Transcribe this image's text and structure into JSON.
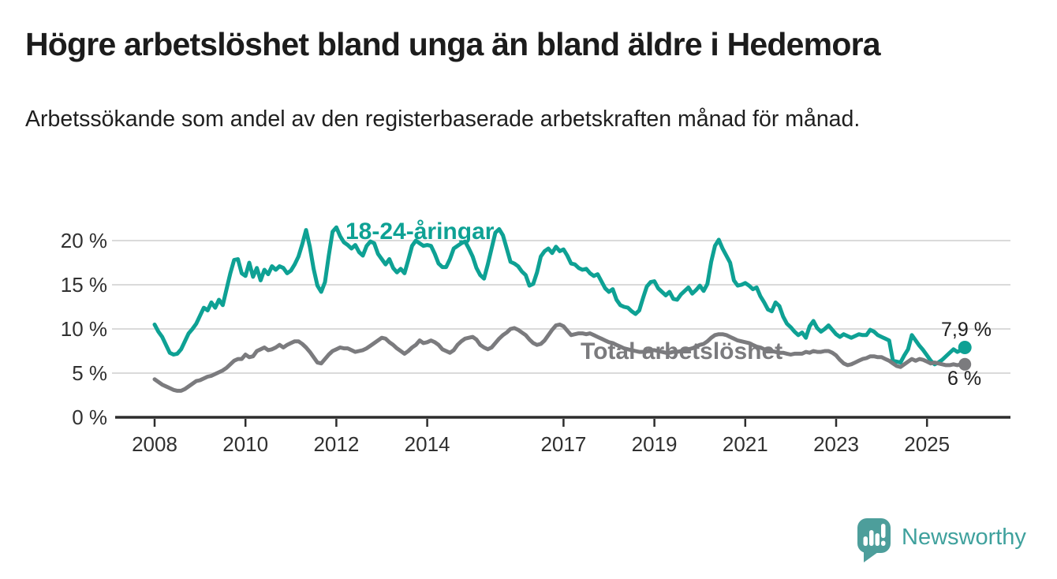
{
  "header": {
    "title": "Högre arbetslöshet bland unga än bland äldre i Hedemora",
    "subtitle": "Arbetssökande som andel av den registerbaserade arbetskraften månad för månad."
  },
  "chart_data": {
    "type": "line",
    "title": "Högre arbetslöshet bland unga än bland äldre i Hedemora",
    "subtitle": "Arbetssökande som andel av den registerbaserade arbetskraften månad för månad.",
    "unit": "%",
    "frequency": "monthly",
    "x_start": {
      "year": 2008,
      "month": 1
    },
    "x_end": {
      "year": 2025,
      "month": 11
    },
    "ylim": [
      0,
      22.5
    ],
    "grid": "horizontal",
    "y_axis": {
      "ticks": [
        0,
        5,
        10,
        15,
        20
      ],
      "tick_labels": [
        "0 %",
        "5 %",
        "10 %",
        "15 %",
        "20 %"
      ]
    },
    "x_axis": {
      "ticks": [
        2008,
        2010,
        2012,
        2014,
        2017,
        2019,
        2021,
        2023,
        2025
      ],
      "tick_labels": [
        "2008",
        "2010",
        "2012",
        "2014",
        "2017",
        "2019",
        "2021",
        "2023",
        "2025"
      ]
    },
    "colors": {
      "axis": "#2d2d2d",
      "gridline": "#dadada",
      "label_text": "#1e1e1e"
    },
    "series": [
      {
        "name": "18-24-åringar",
        "color": "#0ea194",
        "end_label": "7,9 %",
        "end_value": 7.9,
        "values": [
          10.5,
          9.7,
          9.1,
          8.2,
          7.3,
          7.1,
          7.2,
          7.7,
          8.6,
          9.5,
          10.0,
          10.6,
          11.5,
          12.4,
          12.1,
          13.0,
          12.4,
          13.3,
          12.7,
          14.5,
          16.3,
          17.8,
          17.9,
          16.3,
          16.0,
          17.5,
          15.9,
          16.9,
          15.5,
          16.7,
          16.2,
          17.1,
          16.7,
          17.1,
          16.9,
          16.3,
          16.6,
          17.3,
          18.2,
          19.6,
          21.2,
          19.3,
          16.8,
          14.9,
          14.2,
          15.3,
          18.3,
          21.0,
          21.5,
          20.5,
          19.8,
          19.5,
          19.1,
          19.5,
          18.7,
          18.3,
          19.4,
          19.9,
          19.7,
          18.5,
          17.9,
          17.3,
          17.9,
          16.9,
          16.4,
          16.8,
          16.3,
          17.8,
          19.4,
          20.0,
          19.7,
          19.4,
          19.5,
          19.4,
          18.5,
          17.4,
          17.0,
          17.0,
          17.9,
          19.1,
          19.4,
          19.7,
          19.9,
          19.1,
          18.2,
          16.9,
          16.1,
          15.7,
          17.3,
          19.1,
          20.9,
          21.3,
          20.6,
          19.1,
          17.6,
          17.4,
          17.1,
          16.5,
          16.1,
          14.9,
          15.1,
          16.4,
          18.2,
          18.8,
          19.1,
          18.6,
          19.3,
          18.8,
          19.0,
          18.3,
          17.4,
          17.3,
          16.9,
          16.7,
          16.8,
          16.3,
          16.0,
          16.2,
          15.4,
          14.6,
          14.2,
          14.5,
          13.3,
          12.7,
          12.5,
          12.4,
          12.0,
          11.7,
          12.1,
          13.5,
          14.8,
          15.3,
          15.4,
          14.6,
          14.2,
          13.8,
          14.2,
          13.4,
          13.3,
          13.9,
          14.3,
          14.7,
          14.0,
          14.4,
          14.9,
          14.3,
          15.1,
          17.6,
          19.4,
          20.1,
          19.1,
          18.3,
          17.5,
          15.5,
          14.9,
          15.0,
          15.2,
          14.9,
          14.5,
          14.7,
          13.7,
          13.0,
          12.2,
          12.0,
          13.0,
          12.6,
          11.4,
          10.6,
          10.2,
          9.7,
          9.3,
          9.6,
          9.0,
          10.3,
          10.9,
          10.1,
          9.7,
          10.0,
          10.4,
          9.9,
          9.4,
          9.1,
          9.4,
          9.2,
          9.0,
          9.2,
          9.4,
          9.3,
          9.3,
          9.9,
          9.7,
          9.3,
          9.1,
          8.9,
          8.7,
          6.4,
          6.3,
          6.2,
          7.0,
          7.7,
          9.3,
          8.7,
          8.1,
          7.6,
          7.0,
          6.4,
          6.0,
          6.2,
          6.5,
          6.9,
          7.3,
          7.7,
          7.4,
          7.6,
          7.9
        ]
      },
      {
        "name": "Total arbetslöshet",
        "color": "#7b7b7e",
        "end_label": "6 %",
        "end_value": 6.0,
        "values": [
          4.3,
          4.0,
          3.7,
          3.5,
          3.3,
          3.1,
          3.0,
          3.0,
          3.2,
          3.5,
          3.8,
          4.1,
          4.2,
          4.4,
          4.6,
          4.7,
          4.9,
          5.1,
          5.3,
          5.6,
          6.0,
          6.4,
          6.6,
          6.6,
          7.1,
          6.8,
          6.9,
          7.5,
          7.7,
          7.9,
          7.6,
          7.7,
          7.9,
          8.2,
          7.9,
          8.2,
          8.4,
          8.6,
          8.6,
          8.3,
          7.9,
          7.4,
          6.8,
          6.2,
          6.1,
          6.6,
          7.1,
          7.5,
          7.7,
          7.9,
          7.8,
          7.8,
          7.6,
          7.4,
          7.5,
          7.6,
          7.8,
          8.1,
          8.4,
          8.7,
          9.0,
          8.9,
          8.5,
          8.2,
          7.8,
          7.5,
          7.2,
          7.5,
          7.9,
          8.2,
          8.7,
          8.4,
          8.5,
          8.7,
          8.5,
          8.2,
          7.7,
          7.5,
          7.3,
          7.6,
          8.2,
          8.6,
          8.9,
          9.0,
          9.1,
          8.8,
          8.2,
          7.9,
          7.7,
          7.9,
          8.4,
          8.9,
          9.3,
          9.6,
          10.0,
          10.1,
          9.9,
          9.6,
          9.3,
          8.8,
          8.4,
          8.2,
          8.3,
          8.7,
          9.3,
          9.9,
          10.4,
          10.5,
          10.3,
          9.8,
          9.3,
          9.4,
          9.5,
          9.5,
          9.4,
          9.5,
          9.3,
          9.1,
          8.9,
          8.7,
          8.5,
          8.4,
          8.2,
          8.0,
          7.8,
          7.7,
          7.6,
          7.5,
          7.4,
          7.4,
          7.5,
          7.6,
          7.6,
          7.5,
          7.4,
          7.3,
          7.3,
          7.4,
          7.4,
          7.5,
          7.6,
          7.7,
          7.8,
          8.0,
          8.2,
          8.3,
          8.6,
          9.0,
          9.3,
          9.4,
          9.4,
          9.3,
          9.1,
          8.9,
          8.7,
          8.6,
          8.5,
          8.4,
          8.2,
          8.0,
          7.9,
          7.7,
          7.6,
          7.5,
          7.4,
          7.3,
          7.3,
          7.2,
          7.1,
          7.2,
          7.2,
          7.2,
          7.4,
          7.3,
          7.5,
          7.4,
          7.4,
          7.5,
          7.5,
          7.3,
          7.0,
          6.5,
          6.1,
          5.9,
          6.0,
          6.2,
          6.4,
          6.6,
          6.7,
          6.9,
          6.9,
          6.8,
          6.8,
          6.6,
          6.4,
          6.1,
          5.8,
          5.7,
          6.0,
          6.3,
          6.6,
          6.4,
          6.6,
          6.5,
          6.3,
          6.1,
          6.2,
          6.1,
          6.0,
          5.9,
          5.9,
          6.0,
          5.9,
          6.0,
          6.0
        ]
      }
    ]
  },
  "branding": {
    "logo_text": "Newsworthy",
    "logo_color": "#4d9e9b",
    "logo_text_color": "#3fa19d"
  }
}
